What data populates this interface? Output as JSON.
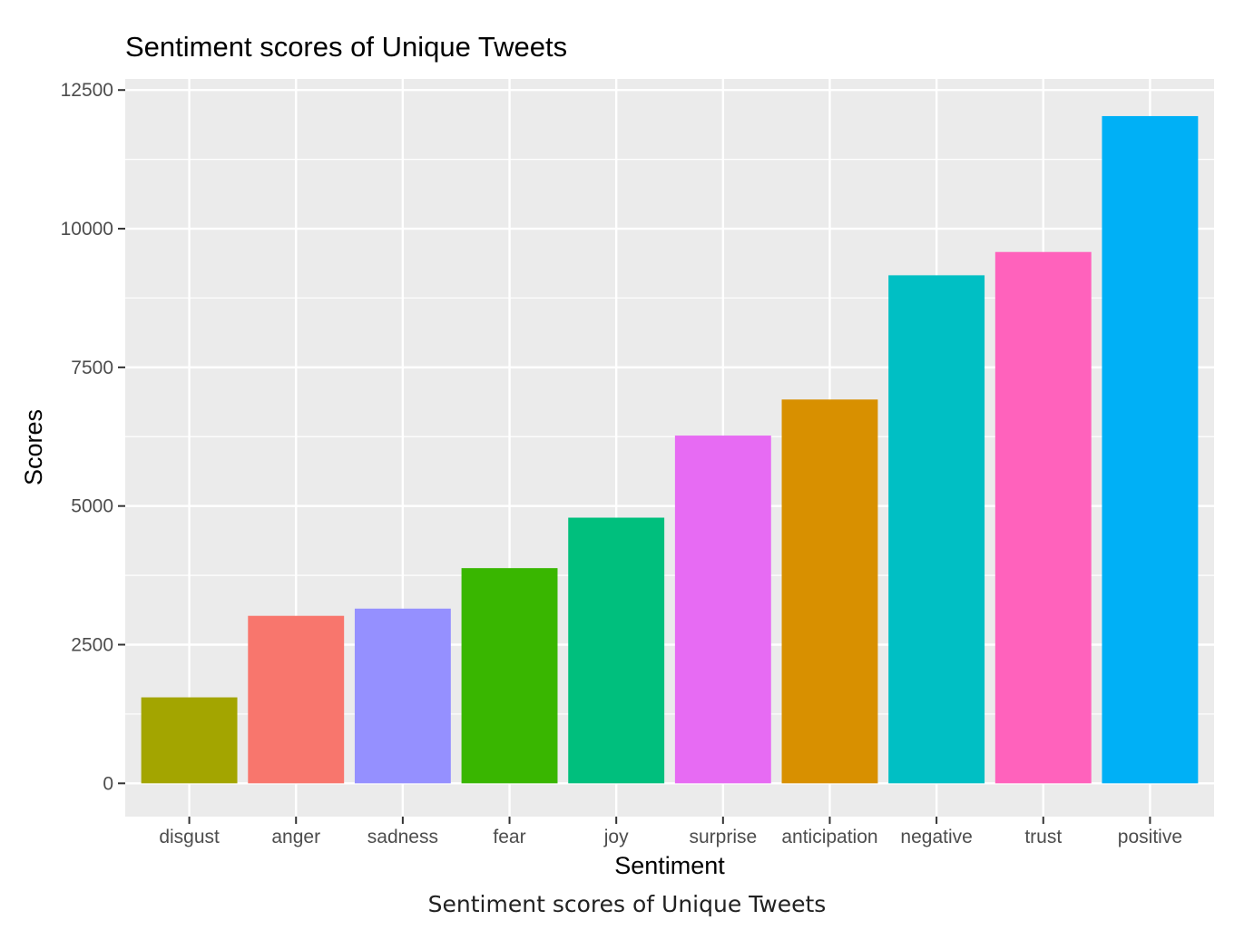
{
  "chart_data": {
    "type": "bar",
    "title": "Sentiment scores of Unique Tweets",
    "xlabel": "Sentiment",
    "ylabel": "Scores",
    "ylim": [
      -600,
      12700
    ],
    "yticks": [
      0,
      2500,
      5000,
      7500,
      10000,
      12500
    ],
    "grid": true,
    "legend": "none",
    "categories": [
      "disgust",
      "anger",
      "sadness",
      "fear",
      "joy",
      "surprise",
      "anticipation",
      "negative",
      "trust",
      "positive"
    ],
    "values": [
      1550,
      3020,
      3150,
      3880,
      4790,
      6270,
      6920,
      9160,
      9580,
      12030
    ],
    "colors": [
      "#A3A500",
      "#F8766D",
      "#9590FF",
      "#39B600",
      "#00BF7D",
      "#E76BF3",
      "#D89000",
      "#00BFC4",
      "#FF62BC",
      "#00B0F6"
    ]
  },
  "caption": "Sentiment scores of Unique Tweets"
}
